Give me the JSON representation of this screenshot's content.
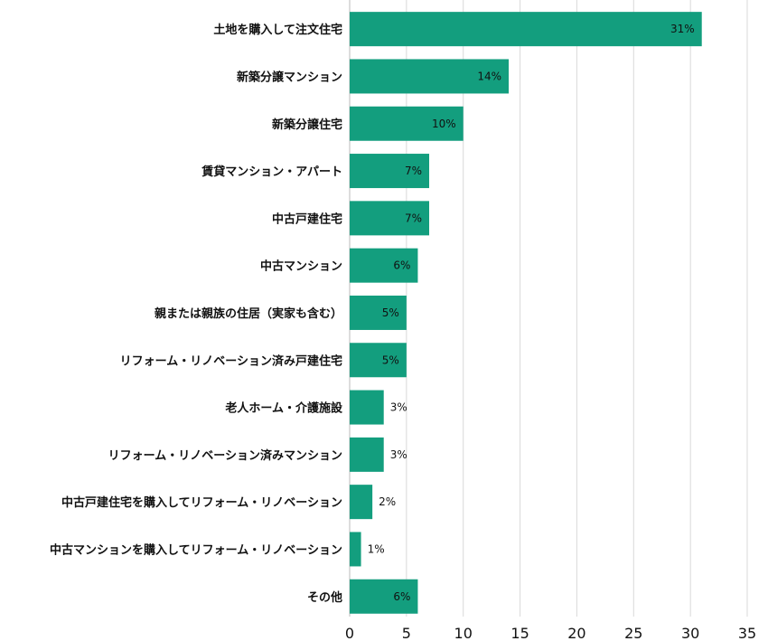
{
  "chart_data": {
    "type": "bar",
    "orientation": "horizontal",
    "categories": [
      "土地を購入して注文住宅",
      "新築分譲マンション",
      "新築分譲住宅",
      "賃貸マンション・アパート",
      "中古戸建住宅",
      "中古マンション",
      "親または親族の住居（実家も含む）",
      "リフォーム・リノベーション済み戸建住宅",
      "老人ホーム・介護施設",
      "リフォーム・リノベーション済みマンション",
      "中古戸建住宅を購入してリフォーム・リノベーション",
      "中古マンションを購入してリフォーム・リノベーション",
      "その他"
    ],
    "values": [
      31,
      14,
      10,
      7,
      7,
      6,
      5,
      5,
      3,
      3,
      2,
      1,
      6
    ],
    "value_labels": [
      "31%",
      "14%",
      "10%",
      "7%",
      "7%",
      "6%",
      "5%",
      "5%",
      "3%",
      "3%",
      "2%",
      "1%",
      "6%"
    ],
    "xlim": [
      0,
      35
    ],
    "xticks": [
      0,
      5,
      10,
      15,
      20,
      25,
      30,
      35
    ],
    "grid": "vertical",
    "bar_color": "#139e7e",
    "title": "",
    "xlabel": "",
    "ylabel": ""
  }
}
